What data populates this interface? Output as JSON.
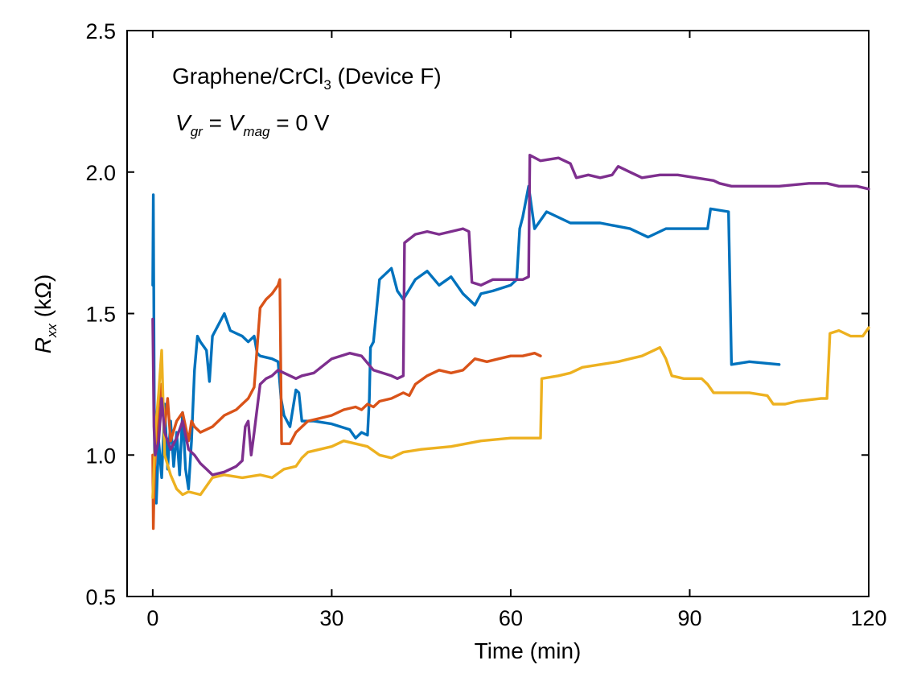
{
  "chart_data": {
    "type": "line",
    "title": "",
    "xlabel": "Time (min)",
    "ylabel": {
      "main": "R",
      "sub": "xx",
      "unit": " (kΩ)"
    },
    "xlim": [
      -4.3,
      120
    ],
    "ylim": [
      0.5,
      2.5
    ],
    "xticks": [
      0,
      30,
      60,
      90,
      120
    ],
    "yticks": [
      0.5,
      1.0,
      1.5,
      2.0,
      2.5
    ],
    "xtick_labels": [
      "0",
      "30",
      "60",
      "90",
      "120"
    ],
    "ytick_labels": [
      "0.5",
      "1.0",
      "1.5",
      "2.0",
      "2.5"
    ],
    "grid": false,
    "legend": "none",
    "annotations": {
      "line1": {
        "a": "Graphene/CrCl",
        "sub": "3",
        "b": " (Device F)"
      },
      "line2": {
        "v1": "V",
        "s1": "gr",
        "eq1": " = ",
        "v2": "V",
        "s2": "mag",
        "eq2": " = 0 V"
      }
    },
    "series": [
      {
        "name": "blue",
        "color": "#0072BD",
        "points": [
          [
            0,
            1.6
          ],
          [
            0.1,
            1.92
          ],
          [
            0.3,
            1.0
          ],
          [
            0.6,
            0.83
          ],
          [
            1,
            1.05
          ],
          [
            1.5,
            0.92
          ],
          [
            2,
            1.18
          ],
          [
            2.5,
            0.95
          ],
          [
            3,
            1.12
          ],
          [
            3.5,
            0.96
          ],
          [
            4,
            1.08
          ],
          [
            4.5,
            0.93
          ],
          [
            5,
            1.15
          ],
          [
            5.5,
            0.95
          ],
          [
            6,
            0.88
          ],
          [
            6.5,
            1.05
          ],
          [
            7,
            1.3
          ],
          [
            7.5,
            1.42
          ],
          [
            8,
            1.4
          ],
          [
            9,
            1.37
          ],
          [
            9.5,
            1.26
          ],
          [
            10,
            1.42
          ],
          [
            11,
            1.46
          ],
          [
            12,
            1.5
          ],
          [
            13,
            1.44
          ],
          [
            14,
            1.43
          ],
          [
            15,
            1.42
          ],
          [
            16,
            1.4
          ],
          [
            17,
            1.42
          ],
          [
            17.5,
            1.36
          ],
          [
            18,
            1.35
          ],
          [
            20,
            1.34
          ],
          [
            21,
            1.33
          ],
          [
            21.5,
            1.2
          ],
          [
            22,
            1.14
          ],
          [
            23,
            1.1
          ],
          [
            24,
            1.23
          ],
          [
            24.5,
            1.22
          ],
          [
            25,
            1.12
          ],
          [
            27,
            1.12
          ],
          [
            30,
            1.11
          ],
          [
            33,
            1.09
          ],
          [
            34,
            1.06
          ],
          [
            35,
            1.08
          ],
          [
            36,
            1.07
          ],
          [
            36.3,
            1.2
          ],
          [
            36.5,
            1.38
          ],
          [
            37,
            1.4
          ],
          [
            38,
            1.62
          ],
          [
            40,
            1.66
          ],
          [
            41,
            1.58
          ],
          [
            42,
            1.55
          ],
          [
            44,
            1.62
          ],
          [
            46,
            1.65
          ],
          [
            48,
            1.6
          ],
          [
            50,
            1.63
          ],
          [
            51,
            1.6
          ],
          [
            52,
            1.57
          ],
          [
            53,
            1.55
          ],
          [
            54,
            1.53
          ],
          [
            55,
            1.57
          ],
          [
            57,
            1.58
          ],
          [
            60,
            1.6
          ],
          [
            61,
            1.62
          ],
          [
            61.5,
            1.8
          ],
          [
            62,
            1.84
          ],
          [
            63,
            1.95
          ],
          [
            64,
            1.8
          ],
          [
            66,
            1.86
          ],
          [
            68,
            1.84
          ],
          [
            70,
            1.82
          ],
          [
            75,
            1.82
          ],
          [
            80,
            1.8
          ],
          [
            83,
            1.77
          ],
          [
            86,
            1.8
          ],
          [
            90,
            1.8
          ],
          [
            93,
            1.8
          ],
          [
            93.5,
            1.87
          ],
          [
            96.5,
            1.86
          ],
          [
            97,
            1.32
          ],
          [
            100,
            1.33
          ],
          [
            105,
            1.32
          ]
        ]
      },
      {
        "name": "orange",
        "color": "#D95319",
        "points": [
          [
            0,
            1.0
          ],
          [
            0.1,
            0.74
          ],
          [
            0.3,
            0.95
          ],
          [
            1,
            1.18
          ],
          [
            1.5,
            1.25
          ],
          [
            2,
            1.1
          ],
          [
            2.5,
            1.2
          ],
          [
            3,
            1.05
          ],
          [
            4,
            1.12
          ],
          [
            5,
            1.15
          ],
          [
            6,
            1.05
          ],
          [
            6.5,
            1.12
          ],
          [
            7,
            1.1
          ],
          [
            8,
            1.08
          ],
          [
            10,
            1.1
          ],
          [
            12,
            1.14
          ],
          [
            14,
            1.16
          ],
          [
            16,
            1.2
          ],
          [
            17,
            1.24
          ],
          [
            17.5,
            1.38
          ],
          [
            18,
            1.52
          ],
          [
            19,
            1.55
          ],
          [
            20,
            1.57
          ],
          [
            21,
            1.6
          ],
          [
            21.3,
            1.62
          ],
          [
            21.6,
            1.04
          ],
          [
            23,
            1.04
          ],
          [
            24,
            1.08
          ],
          [
            25,
            1.1
          ],
          [
            26,
            1.12
          ],
          [
            28,
            1.13
          ],
          [
            30,
            1.14
          ],
          [
            32,
            1.16
          ],
          [
            34,
            1.17
          ],
          [
            35,
            1.16
          ],
          [
            36,
            1.18
          ],
          [
            37,
            1.17
          ],
          [
            38,
            1.19
          ],
          [
            40,
            1.2
          ],
          [
            42,
            1.22
          ],
          [
            43,
            1.21
          ],
          [
            44,
            1.25
          ],
          [
            46,
            1.28
          ],
          [
            48,
            1.3
          ],
          [
            50,
            1.29
          ],
          [
            52,
            1.3
          ],
          [
            54,
            1.34
          ],
          [
            56,
            1.33
          ],
          [
            58,
            1.34
          ],
          [
            60,
            1.35
          ],
          [
            62,
            1.35
          ],
          [
            64,
            1.36
          ],
          [
            65,
            1.35
          ]
        ]
      },
      {
        "name": "yellow",
        "color": "#EDB120",
        "points": [
          [
            0,
            0.85
          ],
          [
            0.2,
            0.95
          ],
          [
            0.5,
            1.1
          ],
          [
            1,
            1.22
          ],
          [
            1.5,
            1.37
          ],
          [
            2,
            1.0
          ],
          [
            3,
            0.93
          ],
          [
            4,
            0.88
          ],
          [
            5,
            0.86
          ],
          [
            6,
            0.87
          ],
          [
            8,
            0.86
          ],
          [
            9,
            0.89
          ],
          [
            10,
            0.92
          ],
          [
            12,
            0.93
          ],
          [
            15,
            0.92
          ],
          [
            18,
            0.93
          ],
          [
            20,
            0.92
          ],
          [
            22,
            0.95
          ],
          [
            24,
            0.96
          ],
          [
            25,
            0.99
          ],
          [
            26,
            1.01
          ],
          [
            28,
            1.02
          ],
          [
            30,
            1.03
          ],
          [
            32,
            1.05
          ],
          [
            34,
            1.04
          ],
          [
            36,
            1.03
          ],
          [
            38,
            1.0
          ],
          [
            40,
            0.99
          ],
          [
            42,
            1.01
          ],
          [
            45,
            1.02
          ],
          [
            50,
            1.03
          ],
          [
            55,
            1.05
          ],
          [
            60,
            1.06
          ],
          [
            64,
            1.06
          ],
          [
            65,
            1.06
          ],
          [
            65.2,
            1.27
          ],
          [
            68,
            1.28
          ],
          [
            70,
            1.29
          ],
          [
            72,
            1.31
          ],
          [
            75,
            1.32
          ],
          [
            78,
            1.33
          ],
          [
            80,
            1.34
          ],
          [
            82,
            1.35
          ],
          [
            84,
            1.37
          ],
          [
            85,
            1.38
          ],
          [
            86,
            1.34
          ],
          [
            87,
            1.28
          ],
          [
            89,
            1.27
          ],
          [
            92,
            1.27
          ],
          [
            93,
            1.25
          ],
          [
            94,
            1.22
          ],
          [
            96,
            1.22
          ],
          [
            100,
            1.22
          ],
          [
            103,
            1.21
          ],
          [
            104,
            1.18
          ],
          [
            106,
            1.18
          ],
          [
            108,
            1.19
          ],
          [
            112,
            1.2
          ],
          [
            113,
            1.2
          ],
          [
            113.5,
            1.43
          ],
          [
            115,
            1.44
          ],
          [
            117,
            1.42
          ],
          [
            119,
            1.42
          ],
          [
            120,
            1.45
          ]
        ]
      },
      {
        "name": "purple",
        "color": "#7E2F8E",
        "points": [
          [
            0,
            1.48
          ],
          [
            0.2,
            1.1
          ],
          [
            0.4,
            1.0
          ],
          [
            1,
            1.05
          ],
          [
            1.5,
            1.2
          ],
          [
            2,
            1.08
          ],
          [
            3,
            1.02
          ],
          [
            4,
            1.06
          ],
          [
            5,
            1.12
          ],
          [
            6,
            1.02
          ],
          [
            7,
            1.0
          ],
          [
            8,
            0.97
          ],
          [
            9,
            0.95
          ],
          [
            10,
            0.93
          ],
          [
            12,
            0.94
          ],
          [
            14,
            0.96
          ],
          [
            15,
            0.98
          ],
          [
            15.5,
            1.1
          ],
          [
            16,
            1.12
          ],
          [
            16.5,
            1.0
          ],
          [
            17,
            1.08
          ],
          [
            18,
            1.25
          ],
          [
            19,
            1.27
          ],
          [
            20,
            1.28
          ],
          [
            21,
            1.3
          ],
          [
            22,
            1.29
          ],
          [
            23,
            1.28
          ],
          [
            24,
            1.27
          ],
          [
            25,
            1.28
          ],
          [
            27,
            1.29
          ],
          [
            30,
            1.34
          ],
          [
            33,
            1.36
          ],
          [
            35,
            1.35
          ],
          [
            37,
            1.3
          ],
          [
            40,
            1.28
          ],
          [
            41,
            1.27
          ],
          [
            42,
            1.28
          ],
          [
            42.2,
            1.75
          ],
          [
            44,
            1.78
          ],
          [
            46,
            1.79
          ],
          [
            48,
            1.78
          ],
          [
            50,
            1.79
          ],
          [
            52,
            1.8
          ],
          [
            53,
            1.79
          ],
          [
            53.5,
            1.61
          ],
          [
            55,
            1.6
          ],
          [
            57,
            1.62
          ],
          [
            59,
            1.62
          ],
          [
            62,
            1.62
          ],
          [
            63,
            1.63
          ],
          [
            63.2,
            2.06
          ],
          [
            65,
            2.04
          ],
          [
            68,
            2.05
          ],
          [
            70,
            2.03
          ],
          [
            71,
            1.98
          ],
          [
            73,
            1.99
          ],
          [
            75,
            1.98
          ],
          [
            77,
            1.99
          ],
          [
            78,
            2.02
          ],
          [
            80,
            2.0
          ],
          [
            82,
            1.98
          ],
          [
            85,
            1.99
          ],
          [
            88,
            1.99
          ],
          [
            91,
            1.98
          ],
          [
            94,
            1.97
          ],
          [
            95,
            1.96
          ],
          [
            97,
            1.95
          ],
          [
            100,
            1.95
          ],
          [
            105,
            1.95
          ],
          [
            110,
            1.96
          ],
          [
            113,
            1.96
          ],
          [
            115,
            1.95
          ],
          [
            118,
            1.95
          ],
          [
            120,
            1.94
          ]
        ]
      }
    ]
  }
}
